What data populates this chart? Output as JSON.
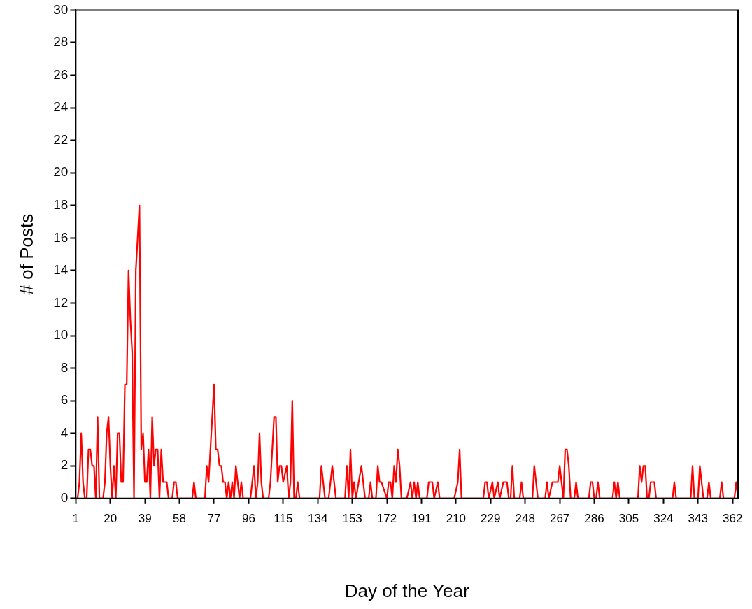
{
  "chart_data": {
    "type": "line",
    "xlabel": "Day of the Year",
    "ylabel": "# of Posts",
    "xlim": [
      1,
      365
    ],
    "xticks": [
      1,
      20,
      39,
      58,
      77,
      96,
      115,
      134,
      153,
      172,
      191,
      210,
      229,
      248,
      267,
      286,
      305,
      324,
      343,
      362
    ],
    "ylim": [
      0,
      30
    ],
    "yticks": [
      0,
      2,
      4,
      6,
      8,
      10,
      12,
      14,
      16,
      18,
      20,
      22,
      24,
      26,
      28,
      30
    ],
    "grid": false,
    "legend": false,
    "marker": "none",
    "line_style": "solid",
    "series": [
      {
        "color": "#ff0000",
        "x": [
          1,
          2,
          3,
          4,
          5,
          6,
          7,
          8,
          9,
          10,
          11,
          12,
          13,
          14,
          16,
          17,
          18,
          19,
          20,
          21,
          22,
          23,
          24,
          25,
          26,
          27,
          28,
          29,
          30,
          31,
          32,
          33,
          34,
          35,
          36,
          37,
          38,
          39,
          40,
          41,
          42,
          43,
          44,
          45,
          46,
          47,
          48,
          49,
          51,
          52,
          54,
          55,
          56,
          57,
          65,
          66,
          67,
          72,
          73,
          74,
          77,
          78,
          79,
          80,
          81,
          82,
          83,
          84,
          85,
          86,
          87,
          88,
          89,
          90,
          91,
          92,
          93,
          97,
          99,
          100,
          101,
          102,
          103,
          104,
          107,
          108,
          110,
          111,
          112,
          113,
          114,
          115,
          117,
          118,
          119,
          120,
          121,
          122,
          123,
          124,
          135,
          136,
          138,
          140,
          142,
          144,
          149,
          150,
          151,
          152,
          153,
          154,
          155,
          158,
          160,
          162,
          163,
          164,
          166,
          167,
          168,
          169,
          172,
          173,
          174,
          175,
          176,
          177,
          178,
          179,
          180,
          183,
          185,
          186,
          187,
          188,
          189,
          190,
          194,
          195,
          197,
          198,
          200,
          201,
          209,
          211,
          212,
          213,
          225,
          226,
          227,
          228,
          230,
          231,
          233,
          234,
          236,
          238,
          239,
          240,
          241,
          242,
          245,
          246,
          247,
          252,
          253,
          255,
          259,
          260,
          261,
          263,
          266,
          267,
          269,
          270,
          271,
          272,
          273,
          275,
          276,
          277,
          283,
          284,
          285,
          286,
          287,
          288,
          289,
          296,
          297,
          298,
          299,
          300,
          310,
          311,
          312,
          313,
          314,
          315,
          316,
          317,
          319,
          320,
          329,
          330,
          331,
          339,
          340,
          341,
          343,
          344,
          346,
          348,
          349,
          350,
          355,
          356,
          357,
          363,
          364,
          365
        ],
        "values": [
          0,
          0,
          1,
          4,
          1,
          0,
          0,
          3,
          3,
          2,
          2,
          0,
          5,
          0,
          0,
          1,
          4,
          5,
          2,
          0,
          2,
          0,
          4,
          4,
          1,
          1,
          7,
          7,
          14,
          11,
          9,
          0,
          14,
          16,
          18,
          3,
          4,
          1,
          1,
          3,
          0,
          5,
          2,
          3,
          3,
          0,
          3,
          1,
          1,
          0,
          0,
          1,
          1,
          0,
          0,
          1,
          0,
          0,
          2,
          1,
          7,
          3,
          3,
          2,
          2,
          1,
          1,
          0,
          1,
          0,
          1,
          0,
          2,
          1,
          0,
          1,
          0,
          0,
          2,
          0,
          1,
          4,
          1,
          0,
          0,
          1,
          5,
          5,
          1,
          2,
          2,
          1,
          2,
          0,
          1,
          6,
          0,
          0,
          1,
          0,
          0,
          2,
          0,
          0,
          2,
          0,
          0,
          2,
          0,
          3,
          0,
          1,
          0,
          2,
          0,
          0,
          1,
          0,
          0,
          2,
          1,
          1,
          0,
          1,
          1,
          0,
          2,
          1,
          3,
          2,
          0,
          0,
          1,
          0,
          1,
          0,
          1,
          0,
          0,
          1,
          1,
          0,
          1,
          0,
          0,
          1,
          3,
          0,
          0,
          1,
          1,
          0,
          1,
          0,
          1,
          0,
          1,
          1,
          0,
          0,
          2,
          0,
          0,
          1,
          0,
          0,
          2,
          0,
          0,
          1,
          0,
          1,
          1,
          2,
          0,
          3,
          3,
          2,
          0,
          0,
          1,
          0,
          0,
          1,
          1,
          0,
          0,
          1,
          0,
          0,
          1,
          0,
          1,
          0,
          0,
          2,
          1,
          2,
          2,
          0,
          0,
          1,
          1,
          0,
          0,
          1,
          0,
          0,
          2,
          0,
          0,
          2,
          0,
          0,
          1,
          0,
          0,
          1,
          0,
          0,
          1,
          0
        ]
      }
    ]
  }
}
